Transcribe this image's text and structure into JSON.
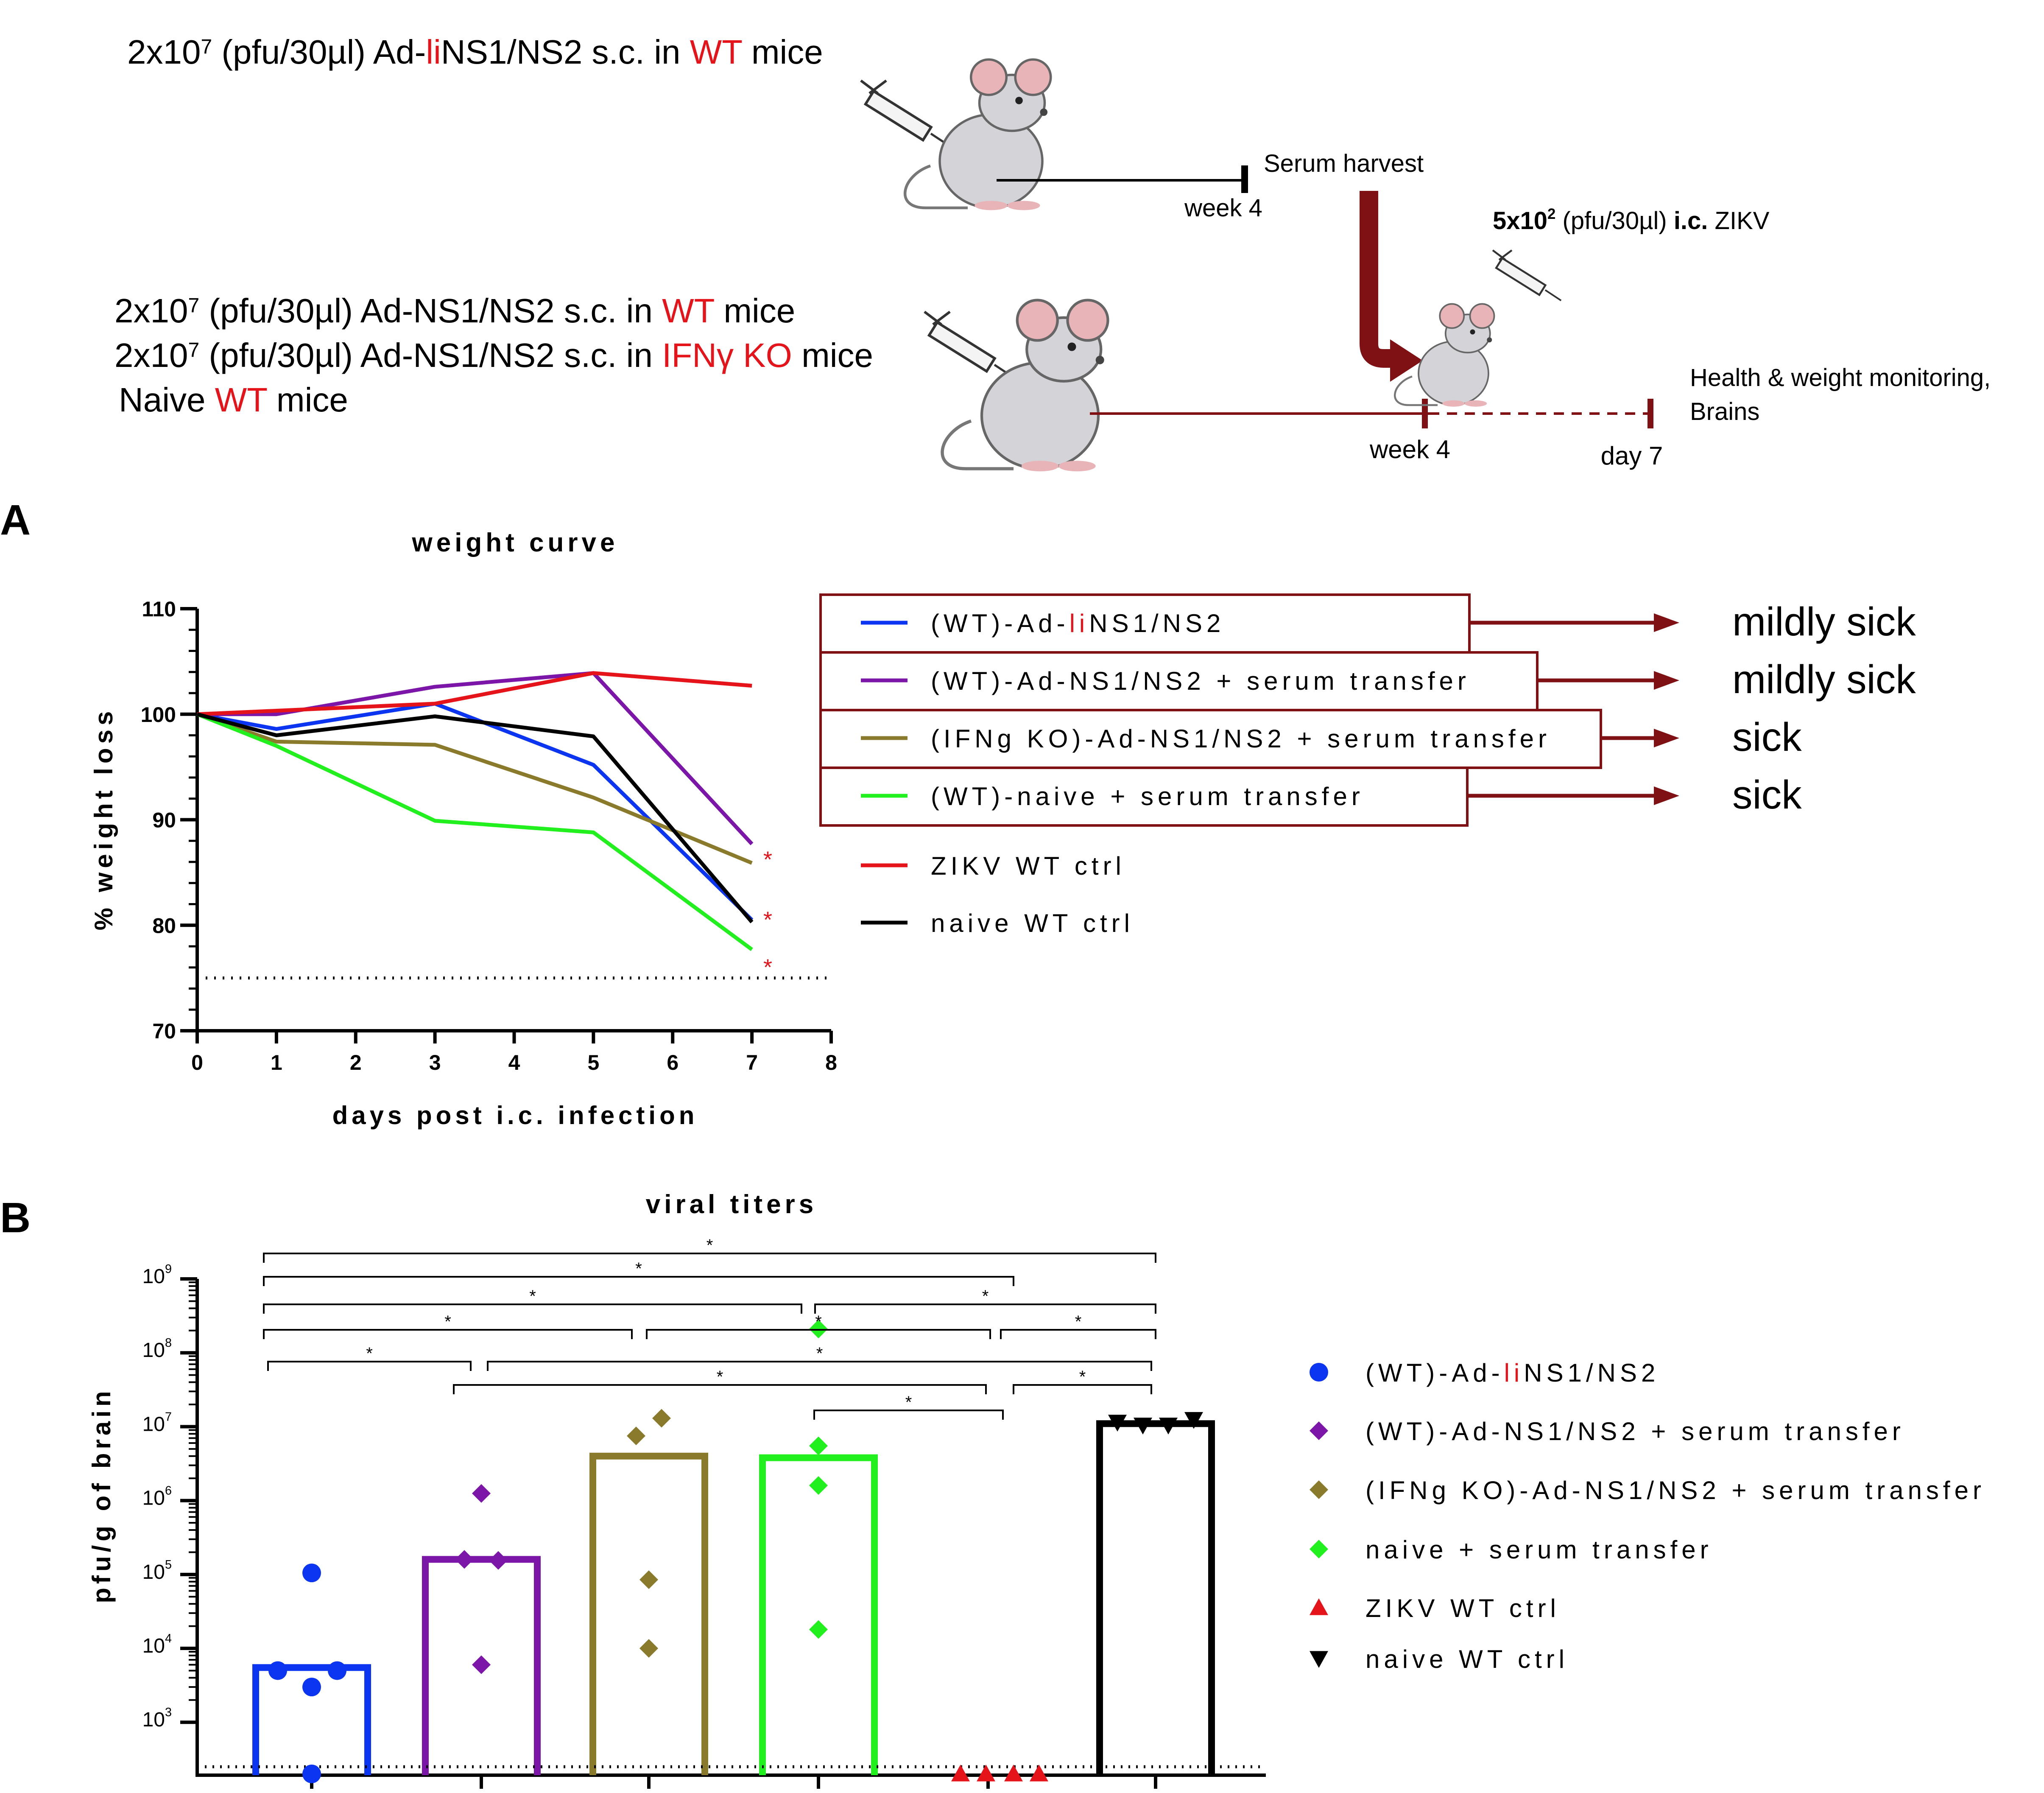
{
  "colors": {
    "blue": "#0b35f0",
    "purple": "#7b16a8",
    "olive": "#8a7a2c",
    "green": "#22f01e",
    "red": "#e5141b",
    "black": "#000000",
    "darkred": "#7f1014"
  },
  "schematic": {
    "line1": {
      "prefix": "2x10",
      "sup": "7",
      "mid": " (pfu/30µl) Ad-",
      "red": "li",
      "suffix": "NS1/NS2 s.c. in ",
      "red2": "WT",
      "end": " mice"
    },
    "line2": {
      "prefix": "2x10",
      "sup": "7",
      "mid": " (pfu/30µl) Ad-NS1/NS2 s.c. in ",
      "red": "WT",
      "end": " mice"
    },
    "line3": {
      "prefix": "2x10",
      "sup": "7",
      "mid": " (pfu/30µl) Ad-NS1/NS2 s.c. in ",
      "red": "IFNγ KO",
      "end": " mice"
    },
    "line4": {
      "prefix": "Naive ",
      "red": "WT",
      "end": " mice"
    },
    "week4_top": "week 4",
    "serum_harvest": "Serum harvest",
    "challenge": {
      "bold": "5x10",
      "sup": "2",
      "mid": "  (pfu/30µl) ",
      "bold2": "i.c.",
      "end": " ZIKV"
    },
    "week4_bottom": "week 4",
    "day7": "day 7",
    "monitoring1": "Health & weight monitoring,",
    "monitoring2": "Brains"
  },
  "chart_data": [
    {
      "panel": "A",
      "type": "line",
      "title": "weight curve",
      "xlabel": "days post i.c. infection",
      "ylabel": "% weight loss",
      "xlim": [
        0,
        8
      ],
      "ylim": [
        70,
        110
      ],
      "xticks": [
        0,
        1,
        2,
        3,
        4,
        5,
        6,
        7,
        8
      ],
      "yticks": [
        70,
        80,
        90,
        100,
        110
      ],
      "threshold": 75,
      "significance": [
        {
          "x": 7.2,
          "y": 86.5,
          "label": "*"
        },
        {
          "x": 7.2,
          "y": 80.8,
          "label": "*"
        },
        {
          "x": 7.2,
          "y": 76.3,
          "label": "*"
        }
      ],
      "series": [
        {
          "name": "(WT)-Ad-liNS1/NS2",
          "color": "blue",
          "x": [
            0,
            1,
            3,
            5,
            7
          ],
          "y": [
            100,
            98.6,
            101.0,
            95.2,
            80.5
          ]
        },
        {
          "name": "(WT)-Ad-NS1/NS2 + serum transfer",
          "color": "purple",
          "x": [
            0,
            1,
            3,
            5,
            7
          ],
          "y": [
            100,
            100,
            102.6,
            103.9,
            87.7
          ]
        },
        {
          "name": "(IFNg KO)-Ad-NS1/NS2 + serum transfer",
          "color": "olive",
          "x": [
            0,
            1,
            3,
            5,
            7
          ],
          "y": [
            100,
            97.4,
            97.1,
            92.1,
            85.9
          ]
        },
        {
          "name": "(WT)-naive + serum transfer",
          "color": "green",
          "x": [
            0,
            1,
            3,
            5,
            7
          ],
          "y": [
            100,
            97.0,
            89.9,
            88.8,
            77.7
          ]
        },
        {
          "name": "ZIKV WT ctrl",
          "color": "red",
          "x": [
            0,
            3,
            5,
            7
          ],
          "y": [
            100,
            101.0,
            103.9,
            102.7
          ]
        },
        {
          "name": "naive WT ctrl",
          "color": "black",
          "x": [
            0,
            1,
            3,
            5,
            7
          ],
          "y": [
            100,
            98.0,
            99.8,
            97.9,
            80.3
          ]
        }
      ],
      "legend": [
        {
          "pre": "(WT)-Ad-",
          "red": "li",
          "post": "NS1/NS2",
          "color": "blue",
          "outcome": "mildly sick"
        },
        {
          "pre": "(WT)-Ad-NS1/NS2 + serum transfer",
          "color": "purple",
          "outcome": "mildly sick"
        },
        {
          "pre": "(IFNg KO)-Ad-NS1/NS2 + serum transfer",
          "color": "olive",
          "outcome": "sick"
        },
        {
          "pre": "(WT)-naive + serum transfer",
          "color": "green",
          "outcome": "sick"
        },
        {
          "pre": "ZIKV WT ctrl",
          "color": "red"
        },
        {
          "pre": "naive WT ctrl",
          "color": "black"
        }
      ]
    },
    {
      "panel": "B",
      "type": "bar",
      "title": "viral titers",
      "ylabel": "pfu/g of brain",
      "yscale": "log",
      "ylim": [
        200,
        1000000000
      ],
      "ytick_exponents": [
        3,
        4,
        5,
        6,
        7,
        8,
        9
      ],
      "detection_limit": 250,
      "groups": [
        {
          "name": "(WT)-Ad-liNS1/NS2",
          "color": "blue",
          "marker": "circle",
          "mean": 5500,
          "points": [
            105000,
            5000,
            5000,
            3000,
            200
          ]
        },
        {
          "name": "(WT)-Ad-NS1/NS2 + serum transfer",
          "color": "purple",
          "marker": "diamond",
          "mean": 160000,
          "points": [
            1250000,
            160000,
            155000,
            6000
          ]
        },
        {
          "name": "(IFNg KO)-Ad-NS1/NS2 + serum transfer",
          "color": "olive",
          "marker": "diamond",
          "mean": 4000000,
          "points": [
            7500000,
            13000000,
            85000,
            10000
          ]
        },
        {
          "name": "naive + serum transfer",
          "color": "green",
          "marker": "diamond",
          "mean": 3800000,
          "points": [
            210000000,
            5500000,
            1600000,
            18000
          ]
        },
        {
          "name": "ZIKV WT ctrl",
          "color": "red",
          "marker": "triangle-up",
          "mean": null,
          "points": [
            200,
            200,
            200,
            200
          ]
        },
        {
          "name": "naive WT ctrl",
          "color": "black",
          "marker": "triangle-down",
          "mean": 11000000,
          "points": [
            11500000,
            10500000,
            10500000,
            12500000
          ]
        }
      ],
      "significance": [
        {
          "from": 0,
          "to": 5,
          "label": "*"
        },
        {
          "from": 0,
          "to": 4.4,
          "label": "*"
        },
        {
          "from": 0,
          "to": 3.0,
          "label": "*"
        },
        {
          "from": 3.0,
          "to": 5,
          "label": "*"
        },
        {
          "from": 0,
          "to": 2.0,
          "label": "*"
        },
        {
          "from": 2.0,
          "to": 4.0,
          "label": "*"
        },
        {
          "from": 4.0,
          "to": 5,
          "label": "*"
        },
        {
          "from": 0,
          "to": 1.0,
          "label": "*"
        },
        {
          "from": 1.0,
          "to": 5,
          "label": "*"
        },
        {
          "from": 1.0,
          "to": 4.0,
          "label": "*"
        },
        {
          "from": 4.0,
          "to": 5,
          "label": "*"
        },
        {
          "from": 3.0,
          "to": 4.0,
          "label": "*"
        }
      ],
      "legend": [
        {
          "pre": "(WT)-Ad-",
          "red": "li",
          "post": "NS1/NS2",
          "color": "blue",
          "marker": "circle"
        },
        {
          "pre": "(WT)-Ad-NS1/NS2 + serum transfer",
          "color": "purple",
          "marker": "diamond"
        },
        {
          "pre": "(IFNg KO)-Ad-NS1/NS2 + serum transfer",
          "color": "olive",
          "marker": "diamond"
        },
        {
          "pre": "naive + serum transfer",
          "color": "green",
          "marker": "diamond"
        },
        {
          "pre": "ZIKV WT ctrl",
          "color": "red",
          "marker": "triangle-up"
        },
        {
          "pre": "naive WT ctrl",
          "color": "black",
          "marker": "triangle-down"
        }
      ]
    }
  ]
}
